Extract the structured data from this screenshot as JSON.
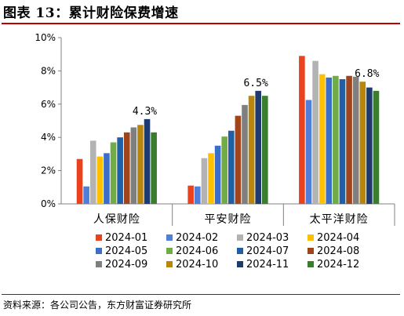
{
  "title": "图表 13：累计财险保费增速",
  "source": "资料来源：各公司公告，东方财富证券研究所",
  "chart_data": {
    "type": "bar",
    "title": "",
    "xlabel": "",
    "ylabel": "",
    "ylim": [
      0,
      10
    ],
    "yticks": [
      "0%",
      "2%",
      "4%",
      "6%",
      "8%",
      "10%"
    ],
    "grid": false,
    "legend_position": "bottom",
    "categories": [
      "人保财险",
      "平安财险",
      "太平洋财险"
    ],
    "series": [
      {
        "name": "2024-01",
        "color": "#e8431e",
        "values": [
          2.7,
          1.1,
          8.9
        ]
      },
      {
        "name": "2024-02",
        "color": "#4f7fd9",
        "values": [
          1.05,
          1.05,
          6.25
        ]
      },
      {
        "name": "2024-03",
        "color": "#b3b3b3",
        "values": [
          3.8,
          2.75,
          8.6
        ]
      },
      {
        "name": "2024-04",
        "color": "#ffc000",
        "values": [
          2.85,
          3.05,
          7.8
        ]
      },
      {
        "name": "2024-05",
        "color": "#3c6ec9",
        "values": [
          3.05,
          3.5,
          7.6
        ]
      },
      {
        "name": "2024-06",
        "color": "#70ad47",
        "values": [
          3.7,
          4.05,
          7.7
        ]
      },
      {
        "name": "2024-07",
        "color": "#1f5fa6",
        "values": [
          4.0,
          4.4,
          7.5
        ]
      },
      {
        "name": "2024-08",
        "color": "#a0451b",
        "values": [
          4.3,
          5.3,
          7.7
        ]
      },
      {
        "name": "2024-09",
        "color": "#7f7f7f",
        "values": [
          4.6,
          5.95,
          7.65
        ]
      },
      {
        "name": "2024-10",
        "color": "#b8860b",
        "values": [
          4.75,
          6.5,
          7.35
        ]
      },
      {
        "name": "2024-11",
        "color": "#1f3a6e",
        "values": [
          5.1,
          6.8,
          7.0
        ]
      },
      {
        "name": "2024-12",
        "color": "#3a7d2c",
        "values": [
          4.3,
          6.5,
          6.8
        ]
      }
    ],
    "annotations": [
      {
        "text": "4.3%",
        "category": "人保财险",
        "series": "2024-12"
      },
      {
        "text": "6.5%",
        "category": "平安财险",
        "series": "2024-12"
      },
      {
        "text": "6.8%",
        "category": "太平洋财险",
        "series": "2024-12"
      }
    ]
  }
}
